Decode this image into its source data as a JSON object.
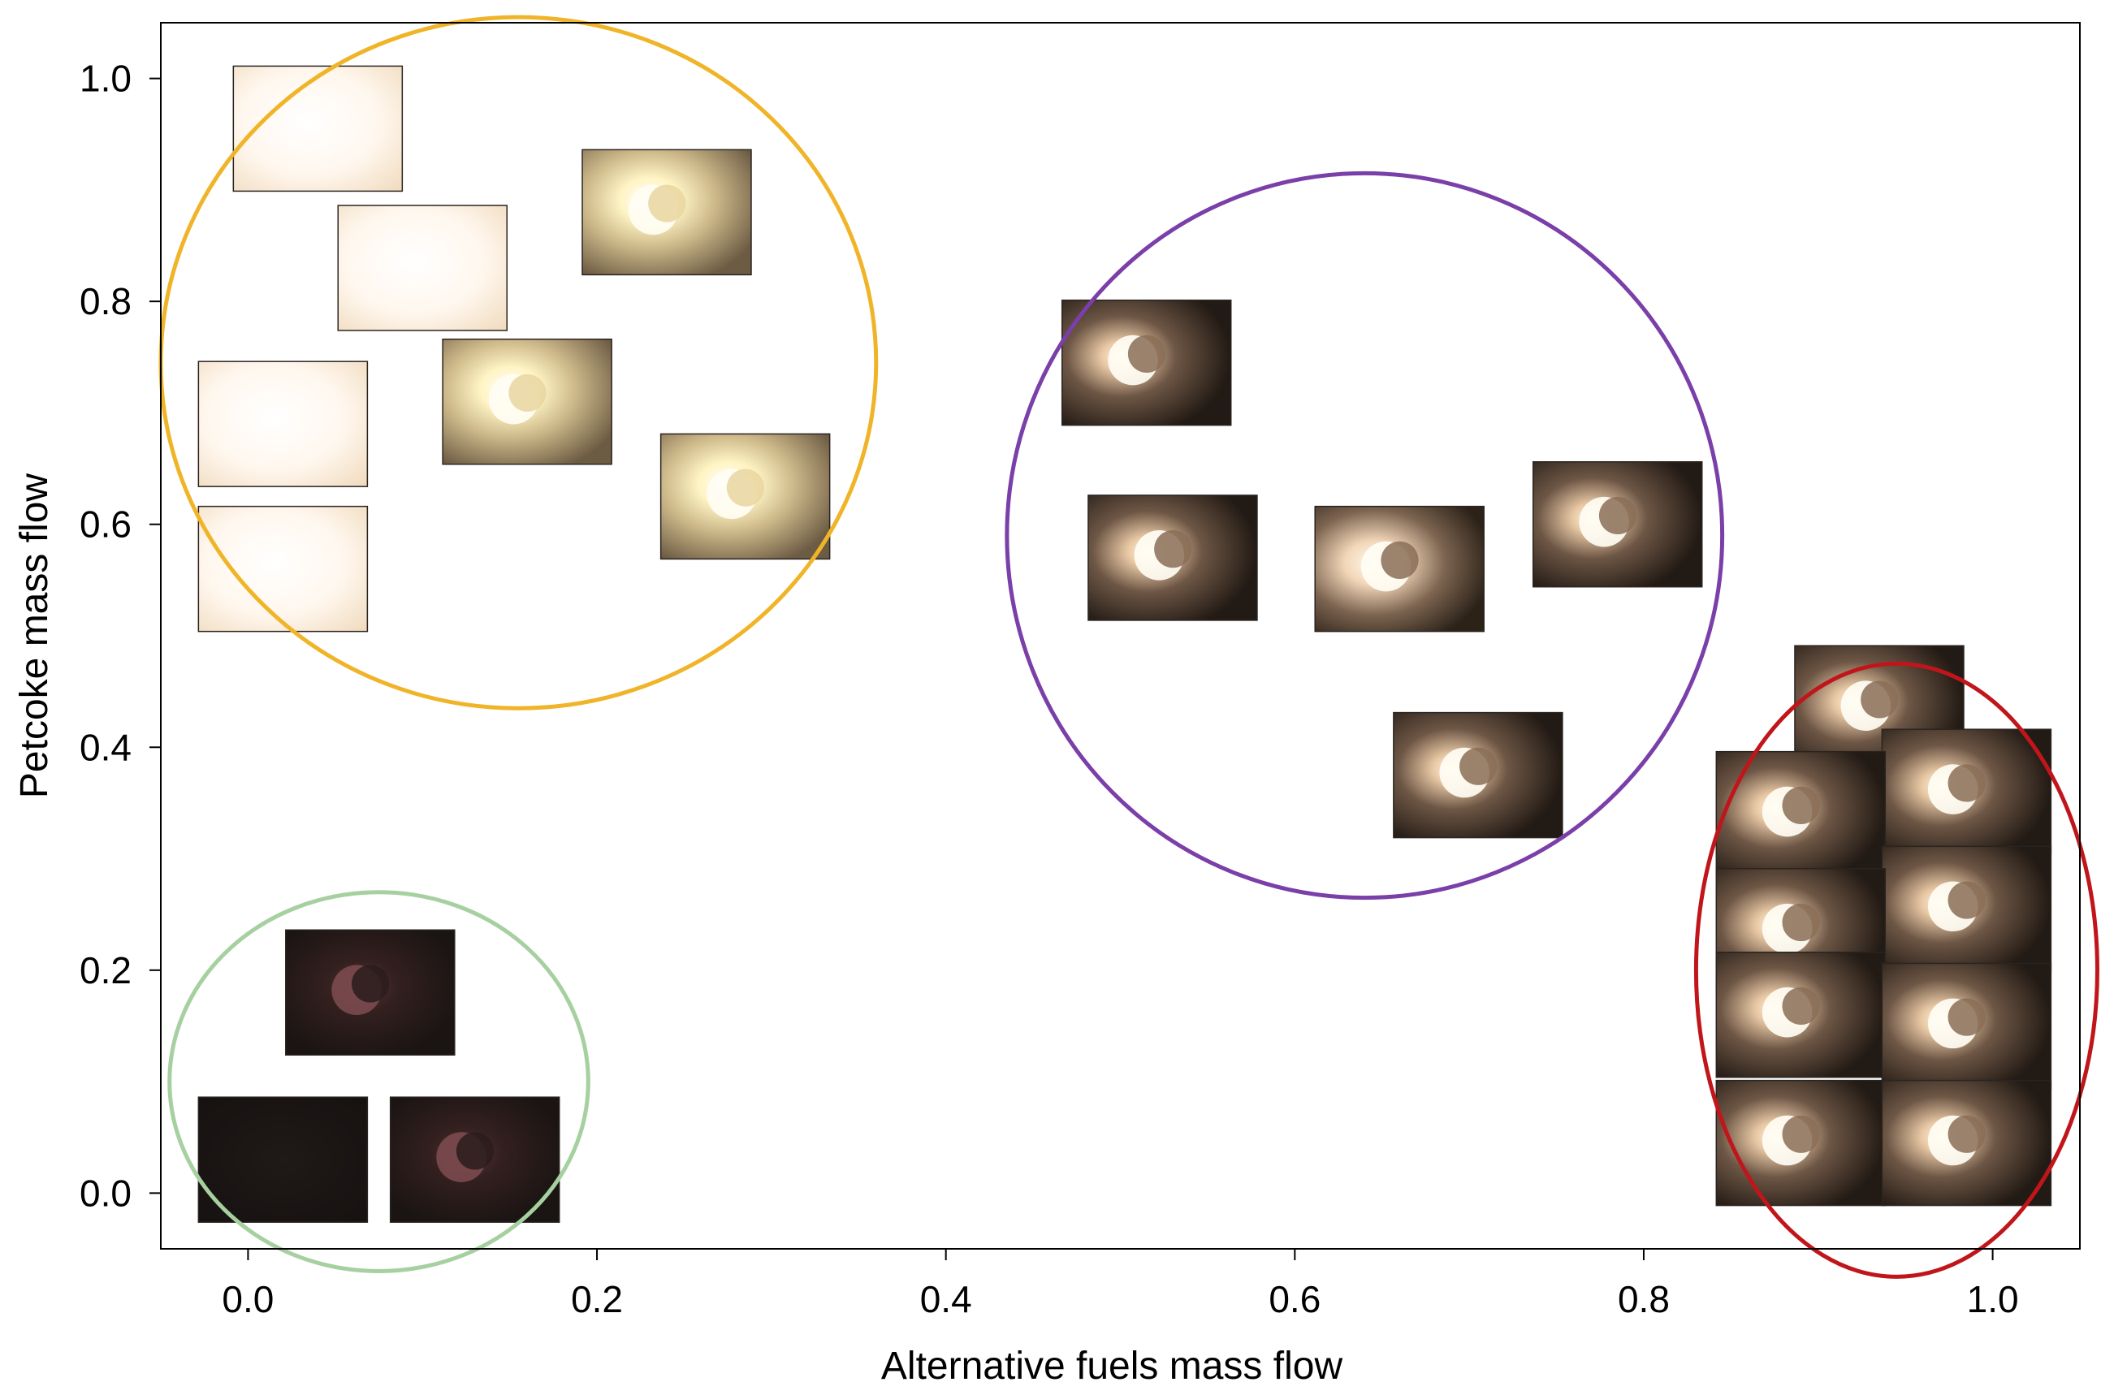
{
  "chart_data": {
    "type": "scatter",
    "title": "",
    "xlabel": "Alternative fuels mass flow",
    "ylabel": "Petcoke mass flow",
    "xlim": [
      -0.05,
      1.05
    ],
    "ylim": [
      -0.05,
      1.05
    ],
    "xticks": [
      "0.0",
      "0.2",
      "0.4",
      "0.6",
      "0.8",
      "1.0"
    ],
    "yticks": [
      "0.0",
      "0.2",
      "0.4",
      "0.6",
      "0.8",
      "1.0"
    ],
    "xtick_values": [
      0.0,
      0.2,
      0.4,
      0.6,
      0.8,
      1.0
    ],
    "ytick_values": [
      0.0,
      0.2,
      0.4,
      0.6,
      0.8,
      1.0
    ],
    "grid": false,
    "legend": "none",
    "marker": "flame-image-thumbnail",
    "clusters": [
      {
        "color": "#f0b429",
        "center": [
          0.155,
          0.745
        ],
        "radius": [
          0.205,
          0.31
        ]
      },
      {
        "color": "#7a3fa8",
        "center": [
          0.64,
          0.59
        ],
        "radius": [
          0.205,
          0.325
        ]
      },
      {
        "color": "#a6d0a0",
        "center": [
          0.075,
          0.1
        ],
        "radius": [
          0.12,
          0.17
        ]
      },
      {
        "color": "#c0161b",
        "center": [
          0.945,
          0.2
        ],
        "radius": [
          0.115,
          0.275
        ]
      }
    ],
    "points": [
      {
        "x": 0.04,
        "y": 0.955,
        "brightness": "saturated"
      },
      {
        "x": 0.1,
        "y": 0.83,
        "brightness": "saturated"
      },
      {
        "x": 0.02,
        "y": 0.69,
        "brightness": "saturated"
      },
      {
        "x": 0.02,
        "y": 0.56,
        "brightness": "saturated"
      },
      {
        "x": 0.24,
        "y": 0.88,
        "brightness": "bright"
      },
      {
        "x": 0.16,
        "y": 0.71,
        "brightness": "bright"
      },
      {
        "x": 0.285,
        "y": 0.625,
        "brightness": "bright"
      },
      {
        "x": 0.515,
        "y": 0.745,
        "brightness": "medium"
      },
      {
        "x": 0.53,
        "y": 0.57,
        "brightness": "medium"
      },
      {
        "x": 0.66,
        "y": 0.56,
        "brightness": "medium-bright"
      },
      {
        "x": 0.785,
        "y": 0.6,
        "brightness": "medium"
      },
      {
        "x": 0.705,
        "y": 0.375,
        "brightness": "medium"
      },
      {
        "x": 0.07,
        "y": 0.18,
        "brightness": "dim"
      },
      {
        "x": 0.02,
        "y": 0.03,
        "brightness": "dark"
      },
      {
        "x": 0.13,
        "y": 0.03,
        "brightness": "dim"
      },
      {
        "x": 0.935,
        "y": 0.435,
        "brightness": "medium"
      },
      {
        "x": 0.985,
        "y": 0.36,
        "brightness": "medium"
      },
      {
        "x": 0.89,
        "y": 0.34,
        "brightness": "medium"
      },
      {
        "x": 0.985,
        "y": 0.255,
        "brightness": "medium"
      },
      {
        "x": 0.89,
        "y": 0.235,
        "brightness": "medium"
      },
      {
        "x": 0.89,
        "y": 0.16,
        "brightness": "medium"
      },
      {
        "x": 0.985,
        "y": 0.15,
        "brightness": "medium"
      },
      {
        "x": 0.89,
        "y": 0.045,
        "brightness": "medium"
      },
      {
        "x": 0.985,
        "y": 0.045,
        "brightness": "medium"
      }
    ]
  }
}
